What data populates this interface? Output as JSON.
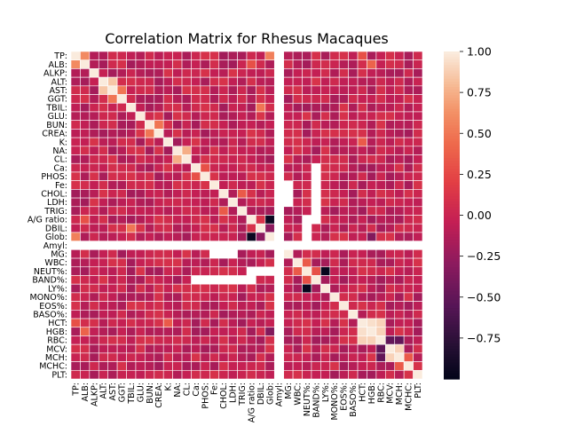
{
  "chart_data": {
    "type": "heatmap",
    "title": "Correlation Matrix for Rhesus Macaques",
    "labels": [
      "TP:",
      "ALB:",
      "ALKP:",
      "ALT:",
      "AST:",
      "GGT:",
      "TBIL:",
      "GLU:",
      "BUN:",
      "CREA:",
      "K:",
      "NA:",
      "CL:",
      "Ca:",
      "PHOS:",
      "Fe:",
      "CHOL:",
      "LDH:",
      "TRIG:",
      "A/G ratio:",
      "DBIL:",
      "Glob:",
      "Amyl:",
      "MG:",
      "WBC:",
      "NEUT%:",
      "BAND%:",
      "LY%:",
      "MONO%:",
      "EOS%:",
      "BASO%:",
      "HCT:",
      "HGB:",
      "RBC:",
      "MCV:",
      "MCH:",
      "MCHC:",
      "PLT:"
    ],
    "colorbar": {
      "ticks": [
        1.0,
        0.75,
        0.5,
        0.25,
        0.0,
        -0.25,
        -0.5,
        -0.75
      ],
      "tick_labels": [
        "1.00",
        "0.75",
        "0.50",
        "0.25",
        "0.00",
        "−0.25",
        "−0.50",
        "−0.75"
      ],
      "vmin": -1.0,
      "vmax": 1.0
    },
    "empty_variable": "Amyl:",
    "notable_correlations": [
      {
        "a": "TP:",
        "b": "ALB:",
        "value": 0.6
      },
      {
        "a": "ALT:",
        "b": "AST:",
        "value": 0.85
      },
      {
        "a": "AST:",
        "b": "GGT:",
        "value": 0.5
      },
      {
        "a": "TP:",
        "b": "Glob:",
        "value": 0.55
      },
      {
        "a": "NA:",
        "b": "CL:",
        "value": 0.75
      },
      {
        "a": "BUN:",
        "b": "CREA:",
        "value": 0.5
      },
      {
        "a": "A/G ratio:",
        "b": "Glob:",
        "value": -0.95
      },
      {
        "a": "A/G ratio:",
        "b": "ALB:",
        "value": 0.3
      },
      {
        "a": "DBIL:",
        "b": "TBIL:",
        "value": 0.5
      },
      {
        "a": "NEUT%:",
        "b": "LY%:",
        "value": -0.98
      },
      {
        "a": "WBC:",
        "b": "NEUT%:",
        "value": 0.35
      },
      {
        "a": "HCT:",
        "b": "HGB:",
        "value": 0.95
      },
      {
        "a": "HCT:",
        "b": "RBC:",
        "value": 0.9
      },
      {
        "a": "HGB:",
        "b": "RBC:",
        "value": 0.9
      },
      {
        "a": "MCV:",
        "b": "MCH:",
        "value": 0.9
      },
      {
        "a": "MCV:",
        "b": "RBC:",
        "value": -0.5
      },
      {
        "a": "MCH:",
        "b": "RBC:",
        "value": -0.5
      },
      {
        "a": "MCHC:",
        "b": "MCH:",
        "value": 0.35
      },
      {
        "a": "HGB:",
        "b": "ALB:",
        "value": 0.4
      },
      {
        "a": "HCT:",
        "b": "TP:",
        "value": 0.3
      },
      {
        "a": "Glob:",
        "b": "HGB:",
        "value": -0.35
      },
      {
        "a": "K:",
        "b": "HCT:",
        "value": 0.35
      },
      {
        "a": "TRIG:",
        "b": "CHOL:",
        "value": 0.35
      },
      {
        "a": "DBIL:",
        "b": "Glob:",
        "value": -0.3
      },
      {
        "a": "BAND%:",
        "b": "NEUT%:",
        "value": 0.3
      },
      {
        "a": "PHOS:",
        "b": "Ca:",
        "value": 0.3
      },
      {
        "a": "Fe:",
        "b": "TP:",
        "value": 0.1
      }
    ],
    "grid": true
  }
}
